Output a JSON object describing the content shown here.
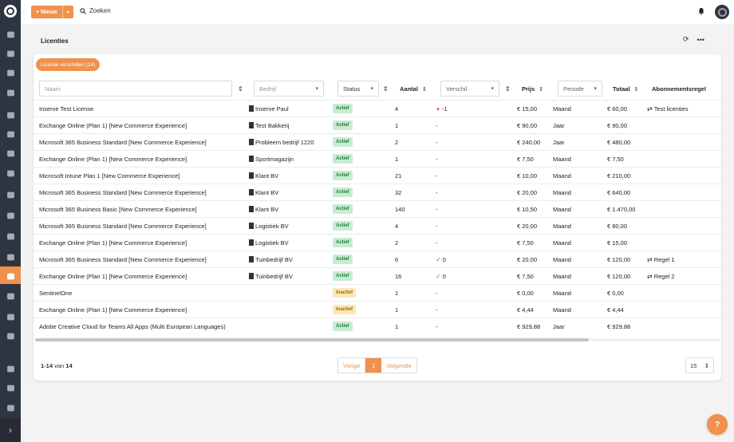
{
  "topbar": {
    "new_label": "+ Nieuw",
    "new_caret": "▾",
    "search_label": "Zoeken"
  },
  "page": {
    "title": "Licenties",
    "differences_badge": "Licentie verschillen (14)"
  },
  "filters": {
    "name_placeholder": "Naam",
    "company_placeholder": "Bedrijf",
    "status_label": "Status",
    "difference_label": "Verschil",
    "period_label": "Periode"
  },
  "columns": {
    "amount": "Aantal",
    "price": "Prijs",
    "total": "Totaal",
    "subscription_rule": "Abonnementsregel"
  },
  "rows": [
    {
      "name": "Inserve Test License",
      "company": "Inserve Paul",
      "status": "Actief",
      "amount": "4",
      "diff": "-1",
      "diff_type": "down",
      "price": "€ 15,00",
      "period": "Maand",
      "total": "€ 60,00",
      "rule": "Test licenties"
    },
    {
      "name": "Exchange Online (Plan 1) [New Commerce Experience]",
      "company": "Test Bakkerij",
      "status": "Actief",
      "amount": "1",
      "diff": "-",
      "diff_type": "none",
      "price": "€ 90,00",
      "period": "Jaar",
      "total": "€ 90,00",
      "rule": ""
    },
    {
      "name": "Microsoft 365 Business Standard [New Commerce Experience]",
      "company": "Probleem bedrijf 1220",
      "status": "Actief",
      "amount": "2",
      "diff": "-",
      "diff_type": "none",
      "price": "€ 240,00",
      "period": "Jaar",
      "total": "€ 480,00",
      "rule": ""
    },
    {
      "name": "Exchange Online (Plan 1) [New Commerce Experience]",
      "company": "Sportmagazijn",
      "status": "Actief",
      "amount": "1",
      "diff": "-",
      "diff_type": "none",
      "price": "€ 7,50",
      "period": "Maand",
      "total": "€ 7,50",
      "rule": ""
    },
    {
      "name": "Microsoft Intune Plan 1 [New Commerce Experience]",
      "company": "Klant BV",
      "status": "Actief",
      "amount": "21",
      "diff": "-",
      "diff_type": "none",
      "price": "€ 10,00",
      "period": "Maand",
      "total": "€ 210,00",
      "rule": ""
    },
    {
      "name": "Microsoft 365 Business Standard [New Commerce Experience]",
      "company": "Klant BV",
      "status": "Actief",
      "amount": "32",
      "diff": "-",
      "diff_type": "none",
      "price": "€ 20,00",
      "period": "Maand",
      "total": "€ 640,00",
      "rule": ""
    },
    {
      "name": "Microsoft 365 Business Basic [New Commerce Experience]",
      "company": "Klant BV",
      "status": "Actief",
      "amount": "140",
      "diff": "-",
      "diff_type": "none",
      "price": "€ 10,50",
      "period": "Maand",
      "total": "€ 1.470,00",
      "rule": ""
    },
    {
      "name": "Microsoft 365 Business Standard [New Commerce Experience]",
      "company": "Logistiek BV",
      "status": "Actief",
      "amount": "4",
      "diff": "-",
      "diff_type": "none",
      "price": "€ 20,00",
      "period": "Maand",
      "total": "€ 80,00",
      "rule": ""
    },
    {
      "name": "Exchange Online (Plan 1) [New Commerce Experience]",
      "company": "Logistiek BV",
      "status": "Actief",
      "amount": "2",
      "diff": "-",
      "diff_type": "none",
      "price": "€ 7,50",
      "period": "Maand",
      "total": "€ 15,00",
      "rule": ""
    },
    {
      "name": "Microsoft 365 Business Standard [New Commerce Experience]",
      "company": "Tuinbedrijf BV",
      "status": "Actief",
      "amount": "6",
      "diff": "0",
      "diff_type": "check",
      "price": "€ 20,00",
      "period": "Maand",
      "total": "€ 120,00",
      "rule": "Regel 1"
    },
    {
      "name": "Exchange Online (Plan 1) [New Commerce Experience]",
      "company": "Tuinbedrijf BV",
      "status": "Actief",
      "amount": "16",
      "diff": "0",
      "diff_type": "check",
      "price": "€ 7,50",
      "period": "Maand",
      "total": "€ 120,00",
      "rule": "Regel 2"
    },
    {
      "name": "SentinelOne",
      "company": "",
      "status": "Inactief",
      "amount": "1",
      "diff": "-",
      "diff_type": "none",
      "price": "€ 0,00",
      "period": "Maand",
      "total": "€ 0,00",
      "rule": ""
    },
    {
      "name": "Exchange Online (Plan 1) [New Commerce Experience]",
      "company": "",
      "status": "Inactief",
      "amount": "1",
      "diff": "-",
      "diff_type": "none",
      "price": "€ 4,44",
      "period": "Maand",
      "total": "€ 4,44",
      "rule": ""
    },
    {
      "name": "Adobe Creative Cloud for Teams All Apps (Multi European Languages)",
      "company": "",
      "status": "Actief",
      "amount": "1",
      "diff": "-",
      "diff_type": "none",
      "price": "€ 929,88",
      "period": "Jaar",
      "total": "€ 929,88",
      "rule": ""
    }
  ],
  "pagination": {
    "range": "1-14",
    "of_label": "van",
    "total": "14",
    "prev": "Vorige",
    "current": "1",
    "next": "Volgende",
    "per_page": "15"
  },
  "help_label": "?",
  "colors": {
    "accent": "#f0914e",
    "sidebar": "#2f3540",
    "active_bg": "#c8ecd1",
    "inactive_bg": "#fde7b4"
  },
  "sidebar_icons": [
    "dashboard-icon",
    "chat-icon",
    "briefcase-icon",
    "tasks-icon",
    "calendar-icon",
    "users-icon",
    "building-icon",
    "network-icon",
    "list-icon",
    "document-icon",
    "clock-icon",
    "sync-icon",
    "cloud-icon",
    "euro-icon",
    "chart-icon",
    "person-icon",
    "moon-icon",
    "history-icon",
    "lightbulb-icon"
  ]
}
